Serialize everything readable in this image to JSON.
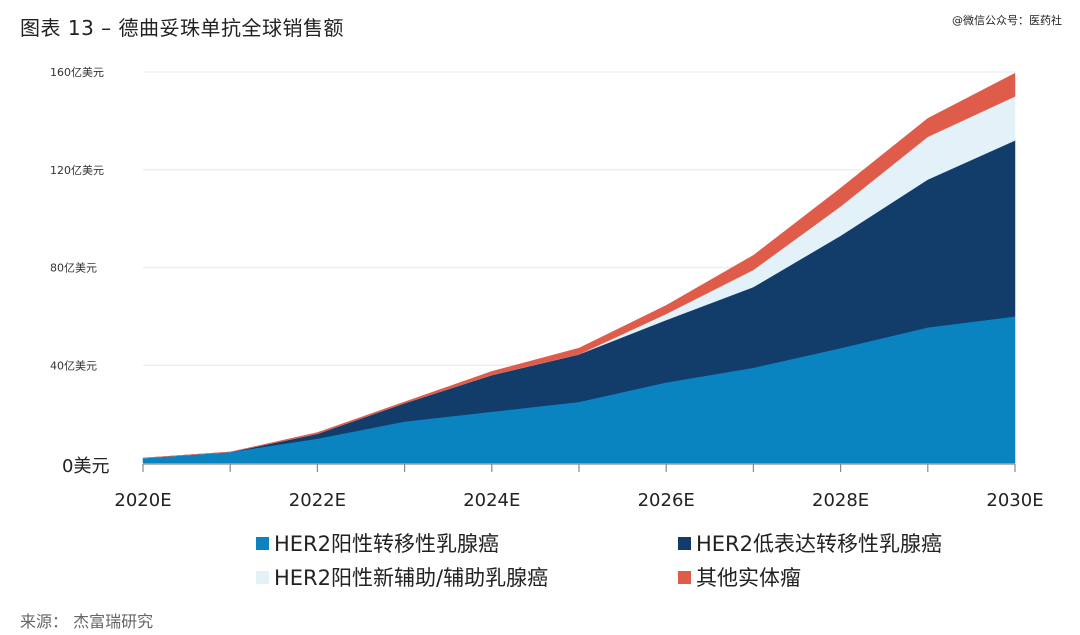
{
  "title": "图表 13 – 德曲妥珠单抗全球销售额",
  "watermark": "@微信公众号：医药社",
  "source": "来源：  杰富瑞研究",
  "chart_data": {
    "type": "area",
    "stacked": true,
    "title": "图表 13 – 德曲妥珠单抗全球销售额",
    "xlabel": "",
    "ylabel": "",
    "x": [
      2020,
      2021,
      2022,
      2023,
      2024,
      2025,
      2026,
      2027,
      2028,
      2029,
      2030
    ],
    "x_tick_labels": [
      "2020E",
      "2022E",
      "2024E",
      "2026E",
      "2028E",
      "2030E"
    ],
    "x_tick_values": [
      2020,
      2022,
      2024,
      2026,
      2028,
      2030
    ],
    "ylim": [
      0,
      160
    ],
    "y_tick_values": [
      0,
      40,
      80,
      120,
      160
    ],
    "y_tick_labels": [
      "0美元",
      "40亿美元",
      "80亿美元",
      "120亿美元",
      "160亿美元"
    ],
    "grid": true,
    "legend_position": "bottom",
    "series": [
      {
        "name": "HER2阳性转移性乳腺癌",
        "color": "#0a84c1",
        "values": [
          2,
          4.5,
          10,
          17,
          21,
          25,
          33,
          39,
          47,
          55.5,
          60
        ]
      },
      {
        "name": "HER2低表达转移性乳腺癌",
        "color": "#123d6b",
        "values": [
          0,
          0,
          2,
          7.5,
          15,
          19.5,
          25.5,
          33,
          46,
          60.5,
          72
        ]
      },
      {
        "name": "HER2阳性新辅助/辅助乳腺癌",
        "color": "#e3f1f9",
        "values": [
          0,
          0,
          0,
          0,
          0,
          0,
          2.5,
          7,
          12,
          17.5,
          18
        ]
      },
      {
        "name": "其他实体瘤",
        "color": "#e05c4a",
        "values": [
          0,
          0,
          0.5,
          0.5,
          1.5,
          2.5,
          3.5,
          6,
          7.5,
          7.5,
          9.5
        ]
      }
    ]
  }
}
